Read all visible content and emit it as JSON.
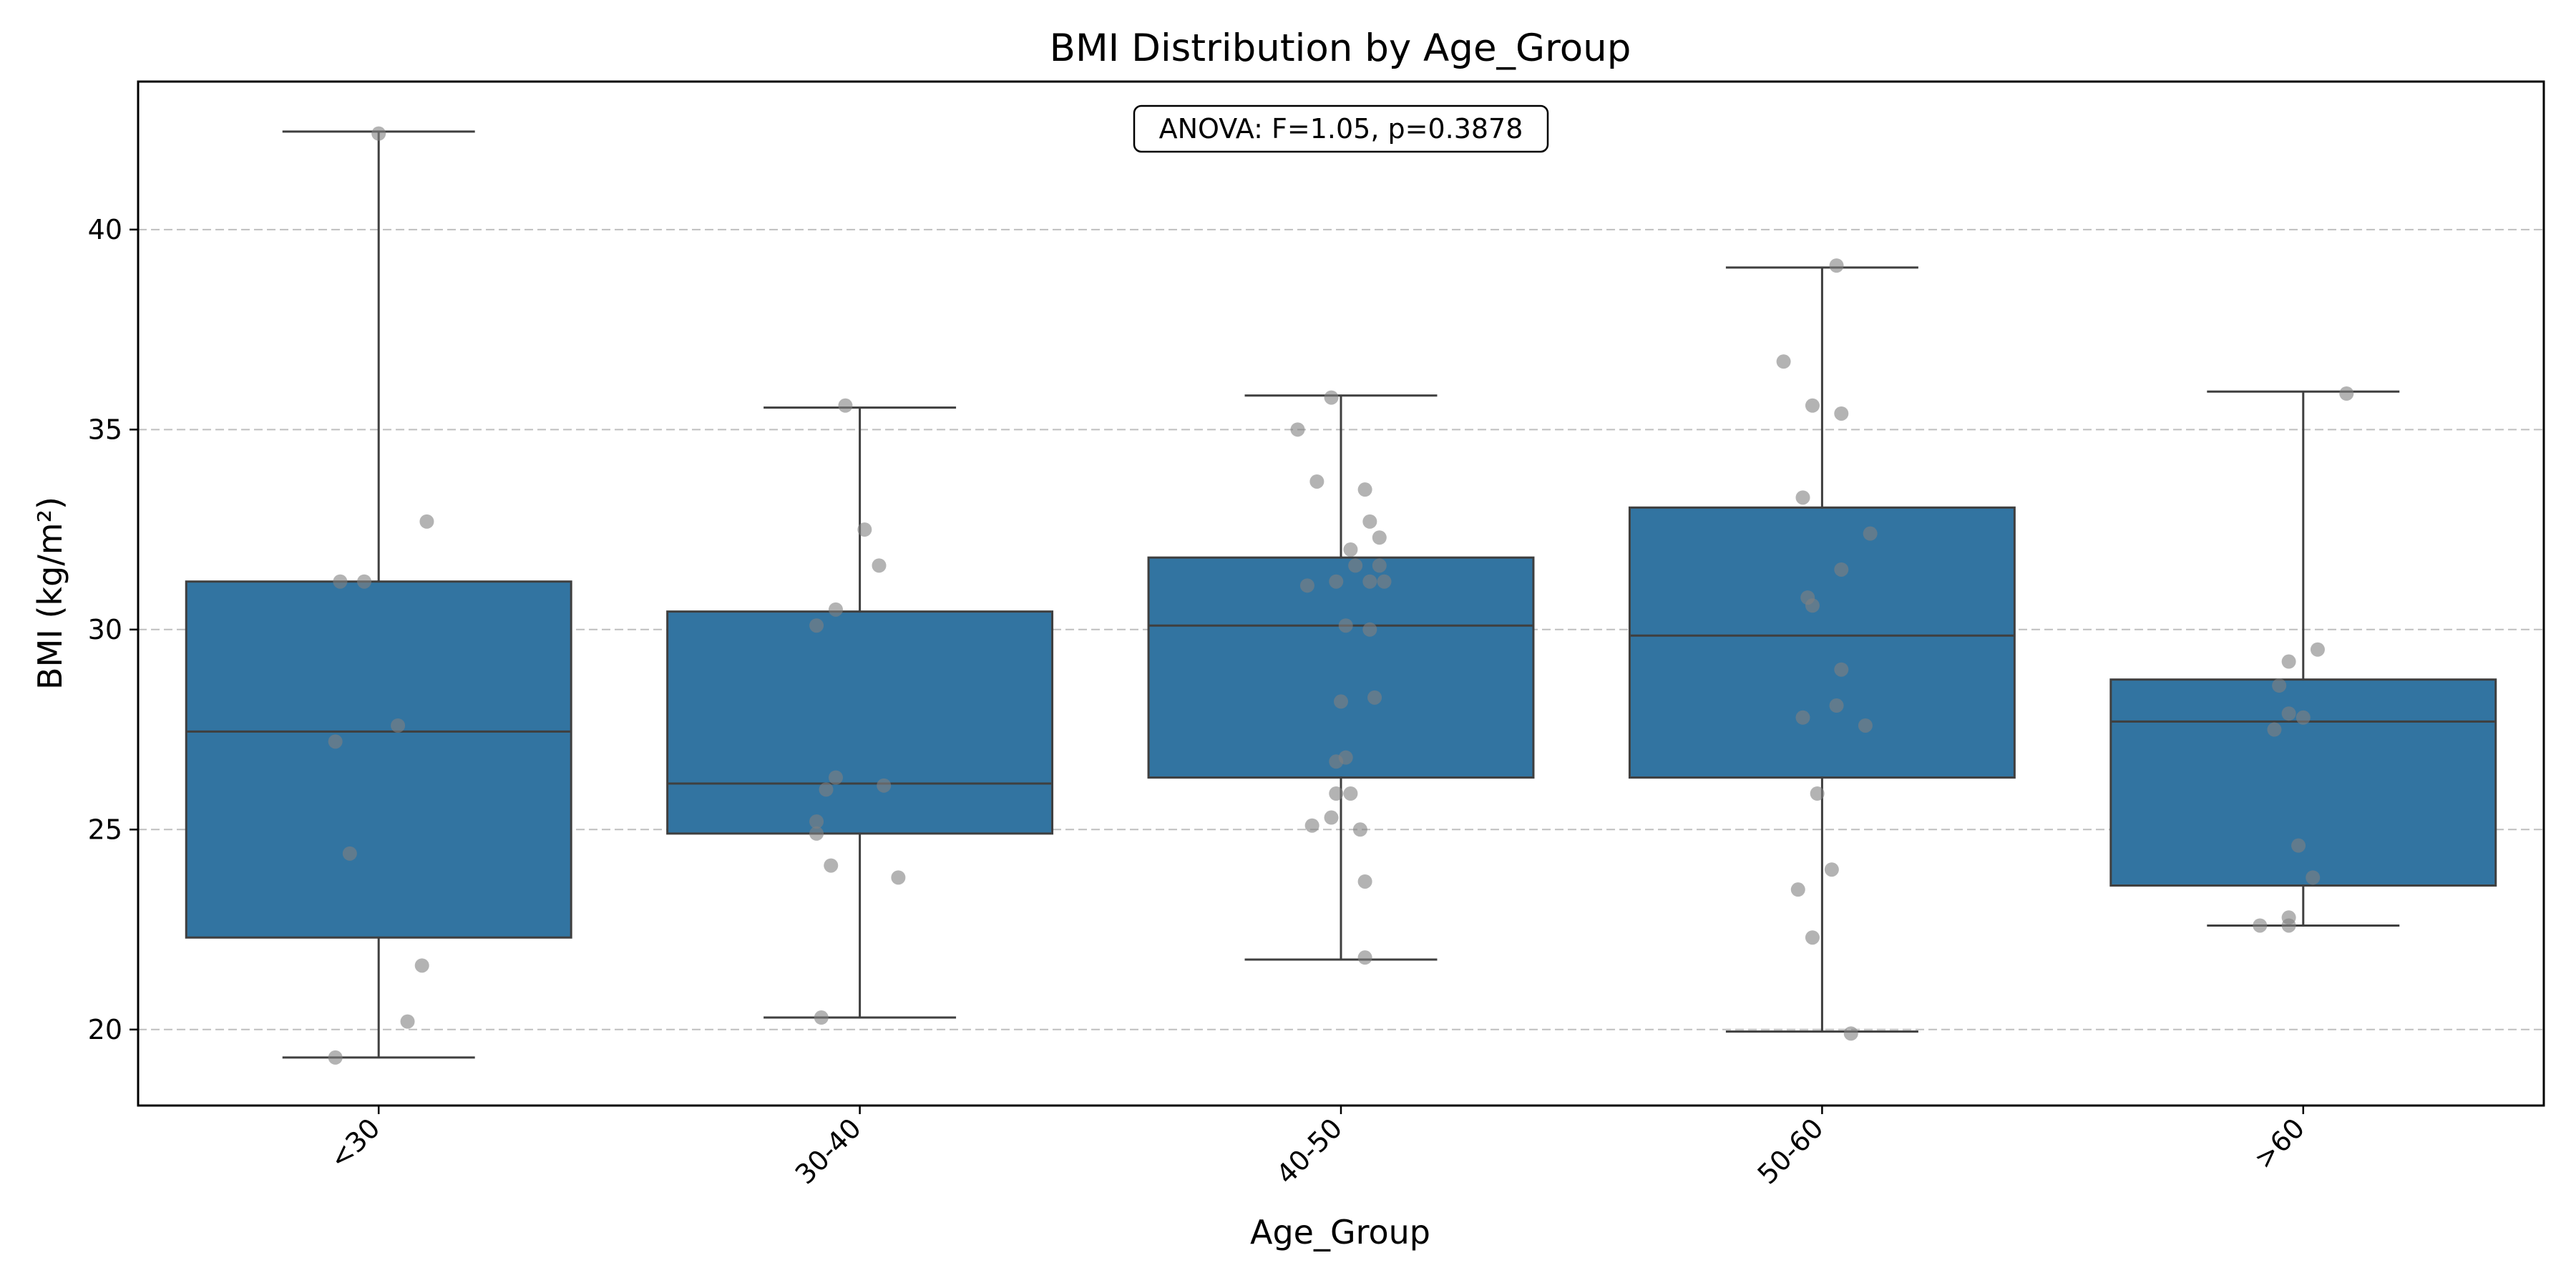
{
  "chart_data": {
    "type": "box",
    "title": "BMI Distribution by Age_Group",
    "xlabel": "Age_Group",
    "ylabel": "BMI (kg/m²)",
    "ylim": [
      18.1,
      43.7
    ],
    "yticks": [
      20,
      25,
      30,
      35,
      40
    ],
    "grid": "y-dashed",
    "categories": [
      "<30",
      "30-40",
      "40-50",
      "50-60",
      ">60"
    ],
    "box_color": "#3274a1",
    "line_color": "#3f3f3f",
    "point_color": "#808080",
    "annotation": "ANOVA: F=1.05, p=0.3878",
    "boxes": [
      {
        "category": "<30",
        "whisker_low": 19.3,
        "q1": 22.3,
        "median": 27.45,
        "q3": 31.2,
        "whisker_high": 42.45
      },
      {
        "category": "30-40",
        "whisker_low": 20.3,
        "q1": 24.9,
        "median": 26.15,
        "q3": 30.45,
        "whisker_high": 35.55
      },
      {
        "category": "40-50",
        "whisker_low": 21.75,
        "q1": 26.3,
        "median": 30.1,
        "q3": 31.8,
        "whisker_high": 35.85
      },
      {
        "category": "50-60",
        "whisker_low": 19.95,
        "q1": 26.3,
        "median": 29.85,
        "q3": 33.05,
        "whisker_high": 39.05
      },
      {
        "category": ">60",
        "whisker_low": 22.6,
        "q1": 23.6,
        "median": 27.7,
        "q3": 28.75,
        "whisker_high": 35.95
      }
    ],
    "points": [
      {
        "category": "<30",
        "values": [
          42.4,
          32.7,
          31.2,
          31.2,
          27.6,
          27.2,
          24.4,
          21.6,
          20.2,
          19.3
        ],
        "jitter": [
          0.0,
          0.1,
          -0.08,
          -0.03,
          0.04,
          -0.09,
          -0.06,
          0.09,
          0.06,
          -0.09
        ]
      },
      {
        "category": "30-40",
        "values": [
          35.6,
          32.5,
          31.6,
          30.5,
          30.1,
          26.3,
          26.1,
          26.0,
          25.2,
          24.9,
          24.1,
          23.8,
          20.3
        ],
        "jitter": [
          -0.03,
          0.01,
          0.04,
          -0.05,
          -0.09,
          -0.05,
          0.05,
          -0.07,
          -0.09,
          -0.09,
          -0.06,
          0.08,
          -0.08
        ]
      },
      {
        "category": "40-50",
        "values": [
          35.8,
          35.0,
          33.7,
          33.5,
          32.7,
          32.3,
          32.0,
          31.6,
          31.6,
          31.2,
          31.2,
          31.2,
          31.1,
          30.1,
          30.0,
          28.3,
          28.2,
          26.8,
          26.7,
          25.9,
          25.9,
          25.3,
          25.1,
          25.0,
          23.7,
          21.8
        ],
        "jitter": [
          -0.02,
          -0.09,
          -0.05,
          0.05,
          0.06,
          0.08,
          0.02,
          0.03,
          0.08,
          -0.01,
          0.06,
          0.09,
          -0.07,
          0.01,
          0.06,
          0.07,
          0.0,
          0.01,
          -0.01,
          -0.01,
          0.02,
          -0.02,
          -0.06,
          0.04,
          0.05,
          0.05
        ]
      },
      {
        "category": "50-60",
        "values": [
          39.1,
          36.7,
          35.6,
          35.4,
          33.3,
          32.4,
          31.5,
          30.8,
          30.6,
          29.0,
          28.1,
          27.8,
          27.6,
          25.9,
          24.0,
          23.5,
          22.3,
          19.9
        ],
        "jitter": [
          0.03,
          -0.08,
          -0.02,
          0.04,
          -0.04,
          0.1,
          0.04,
          -0.03,
          -0.02,
          0.04,
          0.03,
          -0.04,
          0.09,
          -0.01,
          0.02,
          -0.05,
          -0.02,
          0.06
        ]
      },
      {
        "category": ">60",
        "values": [
          35.9,
          29.5,
          29.2,
          28.6,
          27.9,
          27.8,
          27.5,
          24.6,
          23.8,
          22.8,
          22.6,
          22.6
        ],
        "jitter": [
          0.09,
          0.03,
          -0.03,
          -0.05,
          -0.03,
          0.0,
          -0.06,
          -0.01,
          0.02,
          -0.03,
          -0.03,
          -0.09
        ]
      }
    ]
  }
}
